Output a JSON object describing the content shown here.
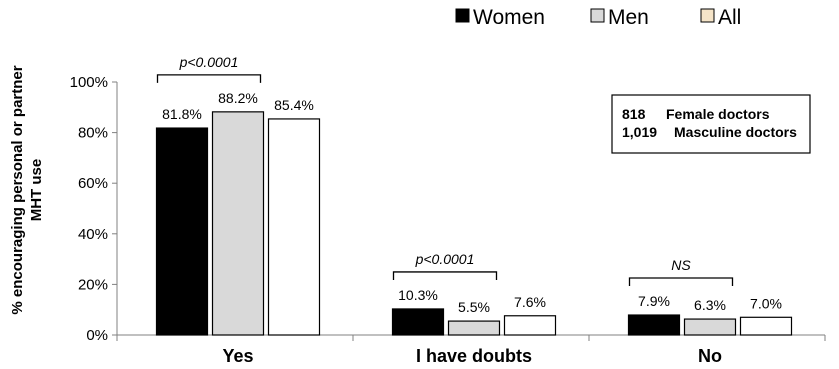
{
  "chart_data": {
    "type": "bar",
    "title": "",
    "xlabel": "",
    "ylabel_lines": [
      "% encouraging personal or partner",
      "MHT use"
    ],
    "ylim": [
      0,
      100
    ],
    "yticks": [
      0,
      20,
      40,
      60,
      80,
      100
    ],
    "ytick_labels": [
      "0%",
      "20%",
      "40%",
      "60%",
      "80%",
      "100%"
    ],
    "categories": [
      "Yes",
      "I have doubts",
      "No"
    ],
    "series": [
      {
        "name": "Women",
        "color": "#000000",
        "values": [
          81.8,
          10.3,
          7.9
        ],
        "labels": [
          "81.8%",
          "10.3%",
          "7.9%"
        ]
      },
      {
        "name": "Men",
        "color": "#d9d9d9",
        "values": [
          88.2,
          5.5,
          6.3
        ],
        "labels": [
          "88.2%",
          "5.5%",
          "6.3%"
        ]
      },
      {
        "name": "All",
        "color": "#ffffff",
        "values": [
          85.4,
          7.6,
          7.0
        ],
        "labels": [
          "85.4%",
          "7.6%",
          "7.0%"
        ]
      }
    ],
    "legend_position": "top-right",
    "significance": [
      "p<0.0001",
      "p<0.0001",
      "NS"
    ],
    "info_box": [
      {
        "count": "818",
        "label": "Female doctors"
      },
      {
        "count": "1,019",
        "label": "Masculine doctors"
      }
    ]
  }
}
